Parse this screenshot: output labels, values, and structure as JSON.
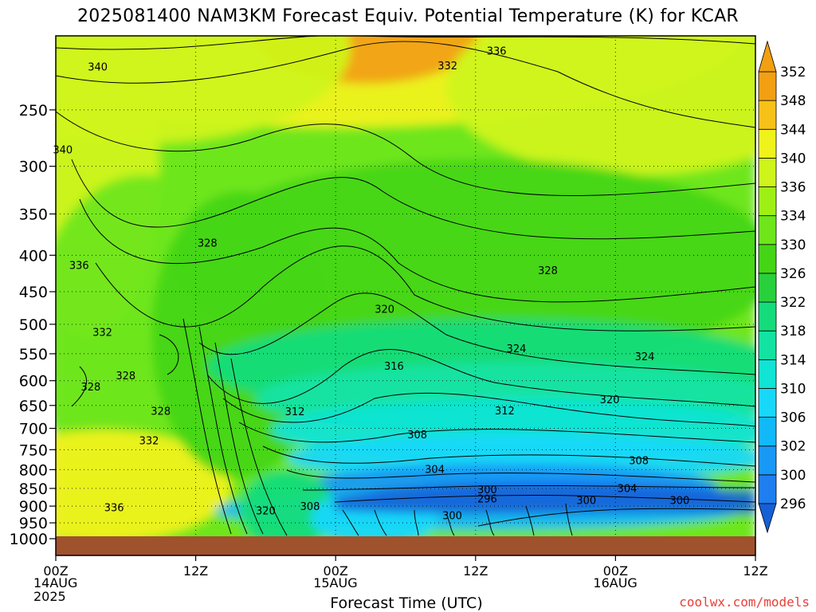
{
  "title": "2025081400 NAM3KM Forecast Equiv. Potential Temperature (K) for KCAR",
  "credit": "coolwx.com/models",
  "chart_data": {
    "type": "heatmap",
    "title": "2025081400 NAM3KM Forecast Equiv. Potential Temperature (K) for KCAR",
    "xlabel": "Forecast Time (UTC)",
    "ylabel": "",
    "x_ticks": [
      "00Z",
      "12Z",
      "00Z",
      "12Z",
      "00Z",
      "12Z"
    ],
    "x_hours": [
      0,
      12,
      24,
      36,
      48,
      60
    ],
    "xlim": [
      0,
      60
    ],
    "date_labels": [
      {
        "hour": 0,
        "lines": [
          "14AUG",
          "2025"
        ]
      },
      {
        "hour": 24,
        "lines": [
          "15AUG"
        ]
      },
      {
        "hour": 48,
        "lines": [
          "16AUG"
        ]
      }
    ],
    "y_ticks": [
      250,
      300,
      350,
      400,
      450,
      500,
      550,
      600,
      650,
      700,
      750,
      800,
      850,
      900,
      950,
      1000
    ],
    "ylim": [
      1000,
      200
    ],
    "yscale": "log-pressure",
    "grid": true,
    "colorbar": {
      "levels": [
        296,
        300,
        302,
        306,
        310,
        314,
        318,
        322,
        326,
        330,
        334,
        336,
        340,
        344,
        348,
        352
      ],
      "colors": [
        "#1560d6",
        "#1f7ef0",
        "#1799f5",
        "#12b9f8",
        "#18d8fa",
        "#10e4d4",
        "#12e3a3",
        "#14dc7b",
        "#28d13c",
        "#44d616",
        "#6ee61a",
        "#9ef014",
        "#cff41a",
        "#f0f21c",
        "#f6c218",
        "#f2a012"
      ]
    },
    "contour_labels": [
      {
        "value": "340",
        "hour": 3.6,
        "p": 218
      },
      {
        "value": "336",
        "hour": 37.8,
        "p": 207
      },
      {
        "value": "332",
        "hour": 33.6,
        "p": 217
      },
      {
        "value": "340",
        "hour": 0.6,
        "p": 285
      },
      {
        "value": "336",
        "hour": 2.0,
        "p": 414
      },
      {
        "value": "328",
        "hour": 13.0,
        "p": 385
      },
      {
        "value": "328",
        "hour": 42.2,
        "p": 421
      },
      {
        "value": "320",
        "hour": 28.2,
        "p": 477
      },
      {
        "value": "332",
        "hour": 4.0,
        "p": 514
      },
      {
        "value": "324",
        "hour": 39.5,
        "p": 542
      },
      {
        "value": "324",
        "hour": 50.5,
        "p": 556
      },
      {
        "value": "316",
        "hour": 29.0,
        "p": 573
      },
      {
        "value": "328",
        "hour": 6.0,
        "p": 591
      },
      {
        "value": "328",
        "hour": 3.0,
        "p": 613
      },
      {
        "value": "320",
        "hour": 47.5,
        "p": 639
      },
      {
        "value": "328",
        "hour": 9.0,
        "p": 663
      },
      {
        "value": "312",
        "hour": 20.5,
        "p": 664
      },
      {
        "value": "312",
        "hour": 38.5,
        "p": 662
      },
      {
        "value": "332",
        "hour": 8.0,
        "p": 729
      },
      {
        "value": "308",
        "hour": 31.0,
        "p": 715
      },
      {
        "value": "308",
        "hour": 50.0,
        "p": 778
      },
      {
        "value": "304",
        "hour": 32.5,
        "p": 800
      },
      {
        "value": "304",
        "hour": 49.0,
        "p": 851
      },
      {
        "value": "300",
        "hour": 37.0,
        "p": 855
      },
      {
        "value": "296",
        "hour": 37.0,
        "p": 880
      },
      {
        "value": "336",
        "hour": 5.0,
        "p": 905
      },
      {
        "value": "320",
        "hour": 18.0,
        "p": 915
      },
      {
        "value": "308",
        "hour": 21.8,
        "p": 902
      },
      {
        "value": "300",
        "hour": 45.5,
        "p": 885
      },
      {
        "value": "300",
        "hour": 53.5,
        "p": 885
      },
      {
        "value": "300",
        "hour": 34.0,
        "p": 929
      }
    ]
  }
}
